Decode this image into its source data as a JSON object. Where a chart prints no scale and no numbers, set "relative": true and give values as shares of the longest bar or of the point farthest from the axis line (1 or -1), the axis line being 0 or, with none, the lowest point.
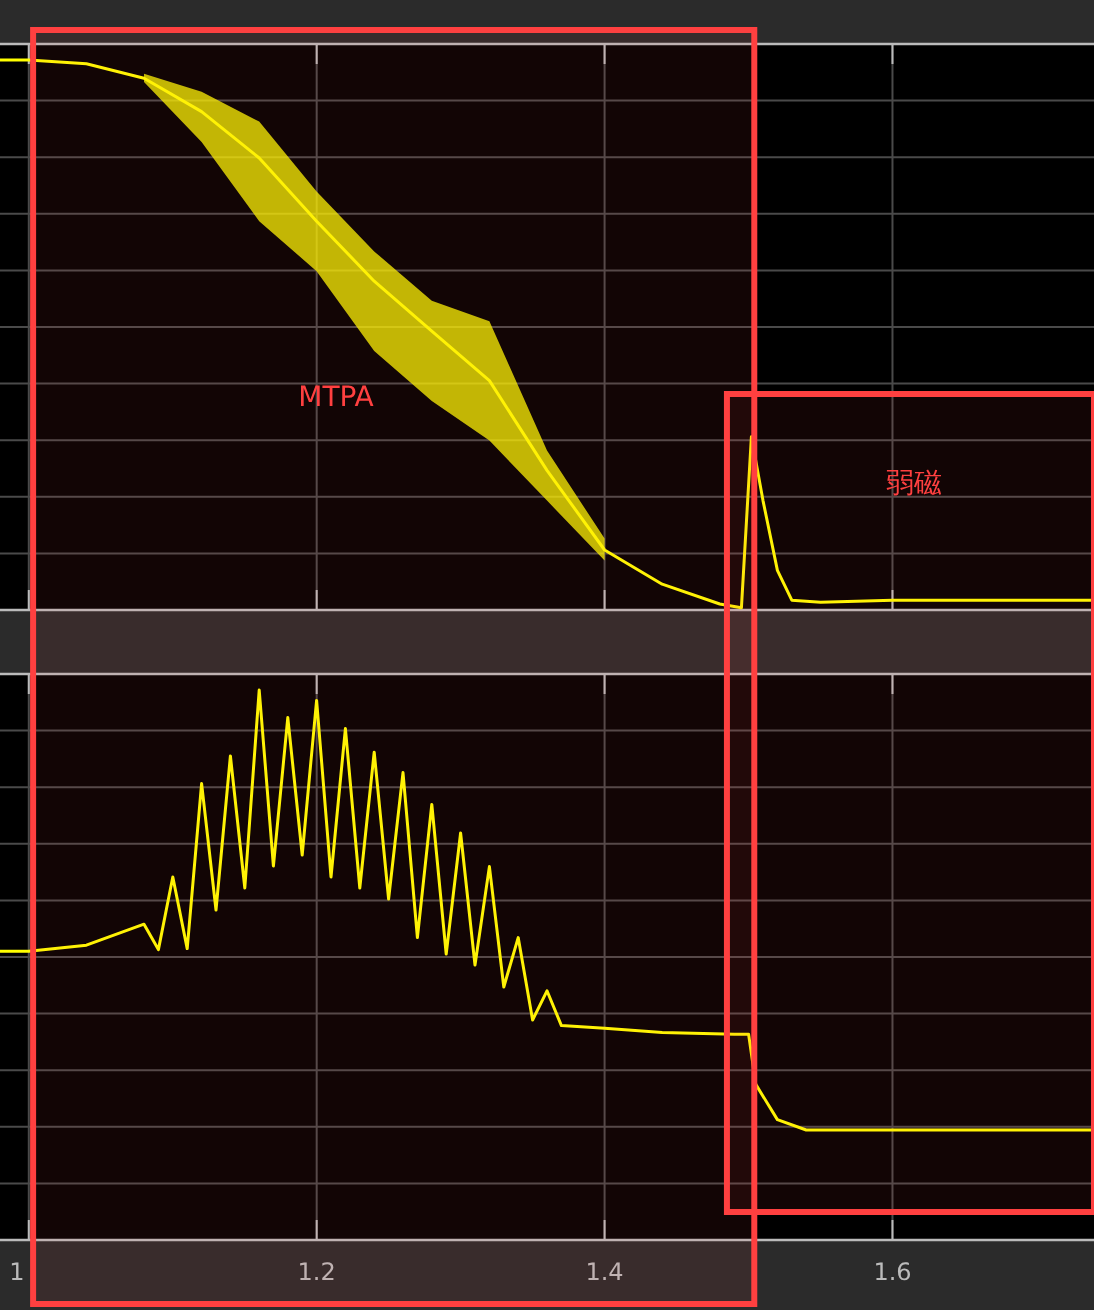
{
  "chart_data": [
    {
      "type": "line",
      "relative": true,
      "xlim": [
        0.98,
        1.74
      ],
      "xticks": [
        1,
        1.2,
        1.4,
        1.6
      ],
      "tick_labels": false,
      "grid": true,
      "series": [
        {
          "color": "#ffff00",
          "x": [
            0.98,
            1.0,
            1.04,
            1.08,
            1.12,
            1.16,
            1.2,
            1.24,
            1.28,
            1.32,
            1.36,
            1.4,
            1.44,
            1.48,
            1.495,
            1.502,
            1.51,
            1.52,
            1.53,
            1.55,
            1.6,
            1.7,
            1.74
          ],
          "values": [
            1.0,
            1.0,
            0.993,
            0.967,
            0.906,
            0.822,
            0.707,
            0.598,
            0.507,
            0.417,
            0.254,
            0.109,
            0.047,
            0.011,
            0.004,
            0.315,
            0.199,
            0.072,
            0.018,
            0.014,
            0.018,
            0.018,
            0.018
          ],
          "lower": [
            null,
            null,
            null,
            0.96,
            0.851,
            0.707,
            0.616,
            0.471,
            0.38,
            0.308,
            0.199,
            0.09,
            null,
            null,
            null,
            null,
            null,
            null,
            null,
            null,
            null,
            null,
            null
          ],
          "upper": [
            null,
            null,
            null,
            0.975,
            0.942,
            0.888,
            0.761,
            0.652,
            0.562,
            0.525,
            0.29,
            0.13,
            null,
            null,
            null,
            null,
            null,
            null,
            null,
            null,
            null,
            null,
            null
          ]
        }
      ],
      "bands": [
        {
          "axis": "x",
          "from": 1.003,
          "to": 1.504,
          "label": "MTPA",
          "color": "#ff4040"
        },
        {
          "axis": "x",
          "from": 1.485,
          "to": 1.74,
          "label": "弱磁",
          "color": "#ff4040"
        }
      ]
    },
    {
      "type": "line",
      "relative": true,
      "xlim": [
        0.98,
        1.74
      ],
      "xticks": [
        1,
        1.2,
        1.4,
        1.6
      ],
      "tick_labels": "x",
      "grid": true,
      "series": [
        {
          "color": "#ffff00",
          "x": [
            0.98,
            1.0,
            1.04,
            1.08,
            1.09,
            1.1,
            1.11,
            1.12,
            1.13,
            1.14,
            1.15,
            1.16,
            1.17,
            1.18,
            1.19,
            1.2,
            1.21,
            1.22,
            1.23,
            1.24,
            1.25,
            1.26,
            1.27,
            1.28,
            1.29,
            1.3,
            1.31,
            1.32,
            1.33,
            1.34,
            1.35,
            1.36,
            1.37,
            1.4,
            1.44,
            1.49,
            1.5,
            1.505,
            1.52,
            1.54,
            1.6,
            1.74
          ],
          "values": [
            0.525,
            0.525,
            0.536,
            0.574,
            0.528,
            0.66,
            0.53,
            0.83,
            0.6,
            0.88,
            0.64,
            1.0,
            0.68,
            0.95,
            0.7,
            0.981,
            0.66,
            0.93,
            0.64,
            0.887,
            0.62,
            0.85,
            0.55,
            0.792,
            0.52,
            0.74,
            0.5,
            0.679,
            0.46,
            0.55,
            0.4,
            0.453,
            0.39,
            0.385,
            0.377,
            0.374,
            0.374,
            0.283,
            0.219,
            0.2,
            0.2,
            0.2
          ]
        }
      ]
    }
  ]
}
